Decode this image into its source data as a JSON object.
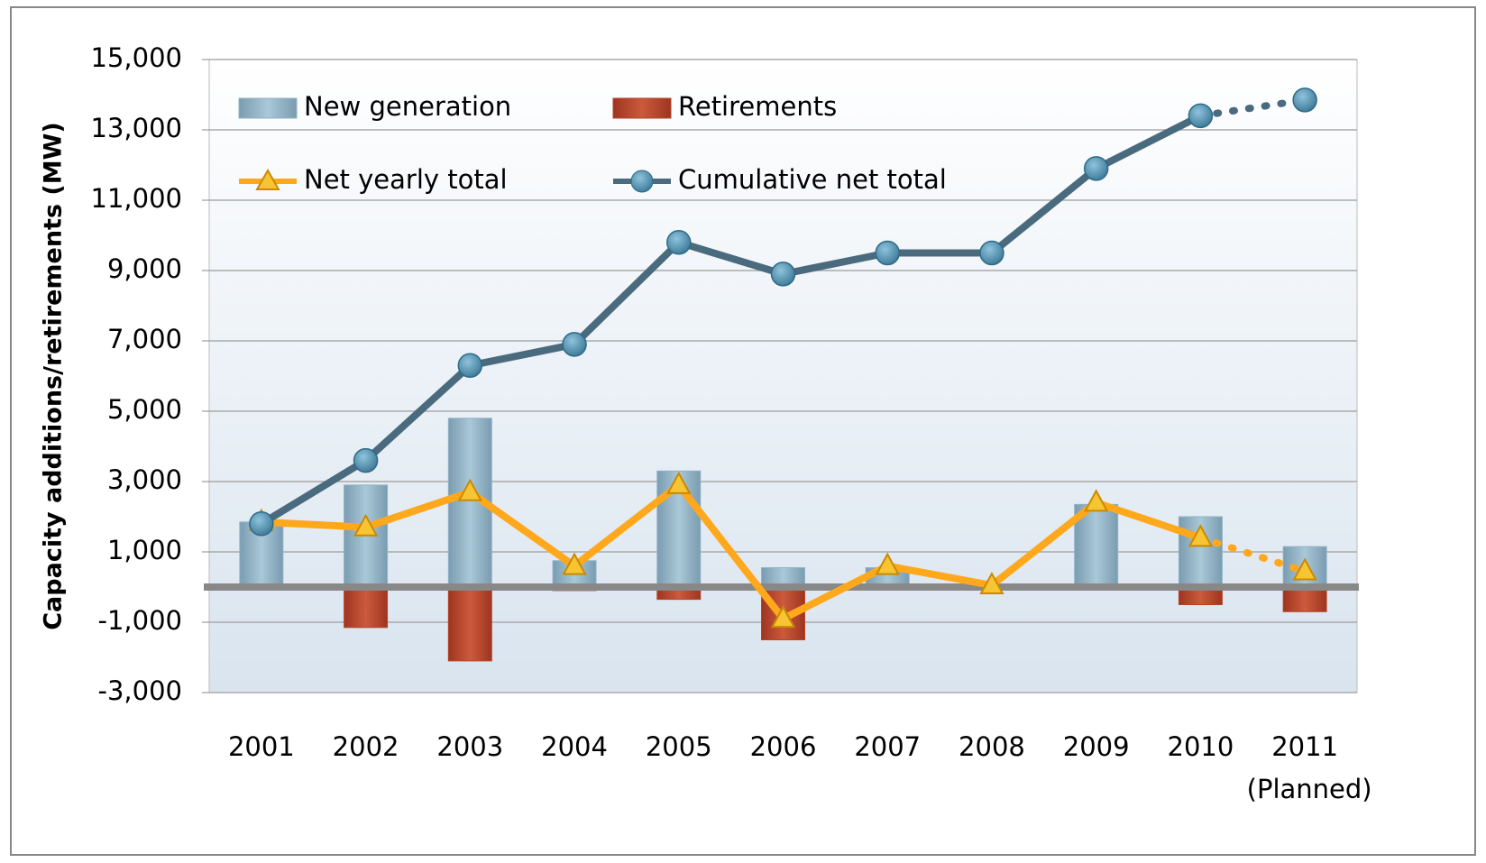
{
  "chart_data": {
    "type": "bar_line",
    "y_label": "Capacity additions/retirements (MW)",
    "categories": [
      "2001",
      "2002",
      "2003",
      "2004",
      "2005",
      "2006",
      "2007",
      "2008",
      "2009",
      "2010",
      "2011"
    ],
    "annotations": [
      "(Planned)"
    ],
    "series": [
      {
        "name": "New generation",
        "type": "bar",
        "color": "#8fb2c6",
        "values": [
          1850,
          2900,
          4800,
          750,
          3300,
          550,
          550,
          0,
          2350,
          2000,
          1150
        ]
      },
      {
        "name": "Retirements",
        "type": "bar",
        "color": "#b4442a",
        "values": [
          0,
          -1150,
          -2100,
          -100,
          -350,
          -1500,
          0,
          0,
          0,
          -500,
          -700
        ]
      },
      {
        "name": "Net yearly total",
        "type": "line",
        "marker": "triangle",
        "color": "#ffa81c",
        "values": [
          1850,
          1700,
          2700,
          600,
          2900,
          -900,
          600,
          50,
          2400,
          1400,
          450
        ]
      },
      {
        "name": "Cumulative net total",
        "type": "line",
        "marker": "circle",
        "color": "#4a6a7e",
        "values": [
          1800,
          3600,
          6300,
          6900,
          9800,
          8900,
          9500,
          9500,
          11900,
          13400,
          13850
        ]
      }
    ],
    "dotted_last_segment": true,
    "ylim": [
      -3000,
      15000
    ],
    "yticks": [
      {
        "value": -3000,
        "label": "-3,000"
      },
      {
        "value": -1000,
        "label": "-1,000"
      },
      {
        "value": 1000,
        "label": "1,000"
      },
      {
        "value": 3000,
        "label": "3,000"
      },
      {
        "value": 5000,
        "label": "5,000"
      },
      {
        "value": 7000,
        "label": "7,000"
      },
      {
        "value": 9000,
        "label": "9,000"
      },
      {
        "value": 11000,
        "label": "11,000"
      },
      {
        "value": 13000,
        "label": "13,000"
      },
      {
        "value": 15000,
        "label": "15,000"
      }
    ],
    "grid": true
  }
}
